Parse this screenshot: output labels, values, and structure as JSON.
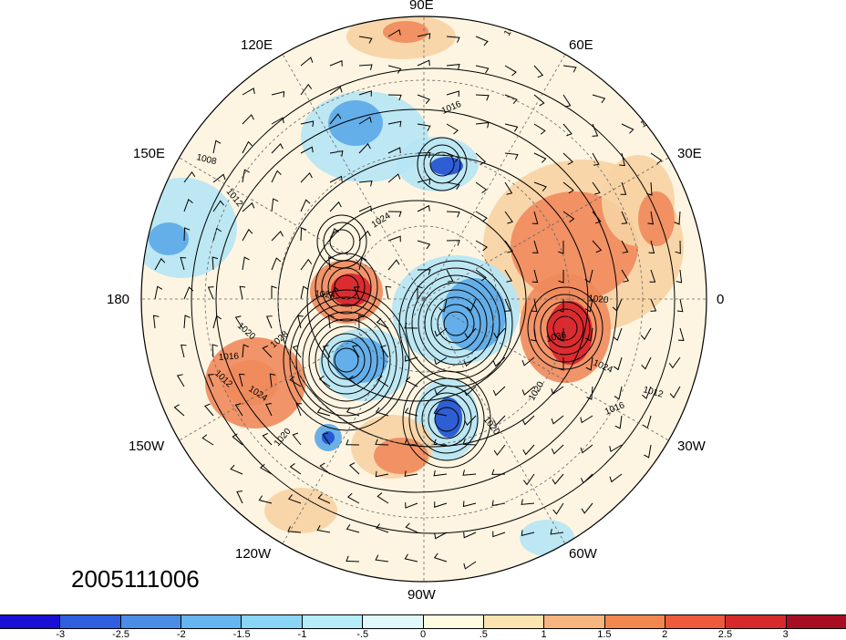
{
  "map": {
    "projection": "north-polar-stereographic",
    "longitude_labels": [
      "90E",
      "60E",
      "30E",
      "0",
      "30W",
      "60W",
      "90W",
      "120W",
      "150W",
      "180",
      "150E",
      "120E"
    ],
    "contour_labels": [
      "1012",
      "1016",
      "1008",
      "1012",
      "1024",
      "1024",
      "1020",
      "1028",
      "1016",
      "1024",
      "1020",
      "1036",
      "1024",
      "1020",
      "1016",
      "1012",
      "1020",
      "1016",
      "1020",
      "1012"
    ],
    "anomaly_colors": {
      "strong_positive": "#d9202a",
      "positive": "#f08a5c",
      "weak_positive": "#f7d3a3",
      "neutral": "#fdf5e1",
      "weak_negative": "#b5e6f5",
      "negative": "#5aa8e8",
      "strong_negative": "#1f4fd0"
    }
  },
  "timestamp": "2005111006",
  "colorbar": {
    "colors": [
      "#1a0fd6",
      "#2f5fe0",
      "#4a8de6",
      "#66b4f0",
      "#8ad5f3",
      "#b6ecf8",
      "#e0f8fb",
      "#fdfbe0",
      "#fbe4b0",
      "#f7b57f",
      "#f2874f",
      "#ee5a3c",
      "#d72a2c",
      "#a80d22"
    ],
    "tick_labels": [
      "-3",
      "-2.5",
      "-2",
      "-1.5",
      "-1",
      "-.5",
      "0",
      ".5",
      "1",
      "1.5",
      "2",
      "2.5",
      "3"
    ]
  }
}
